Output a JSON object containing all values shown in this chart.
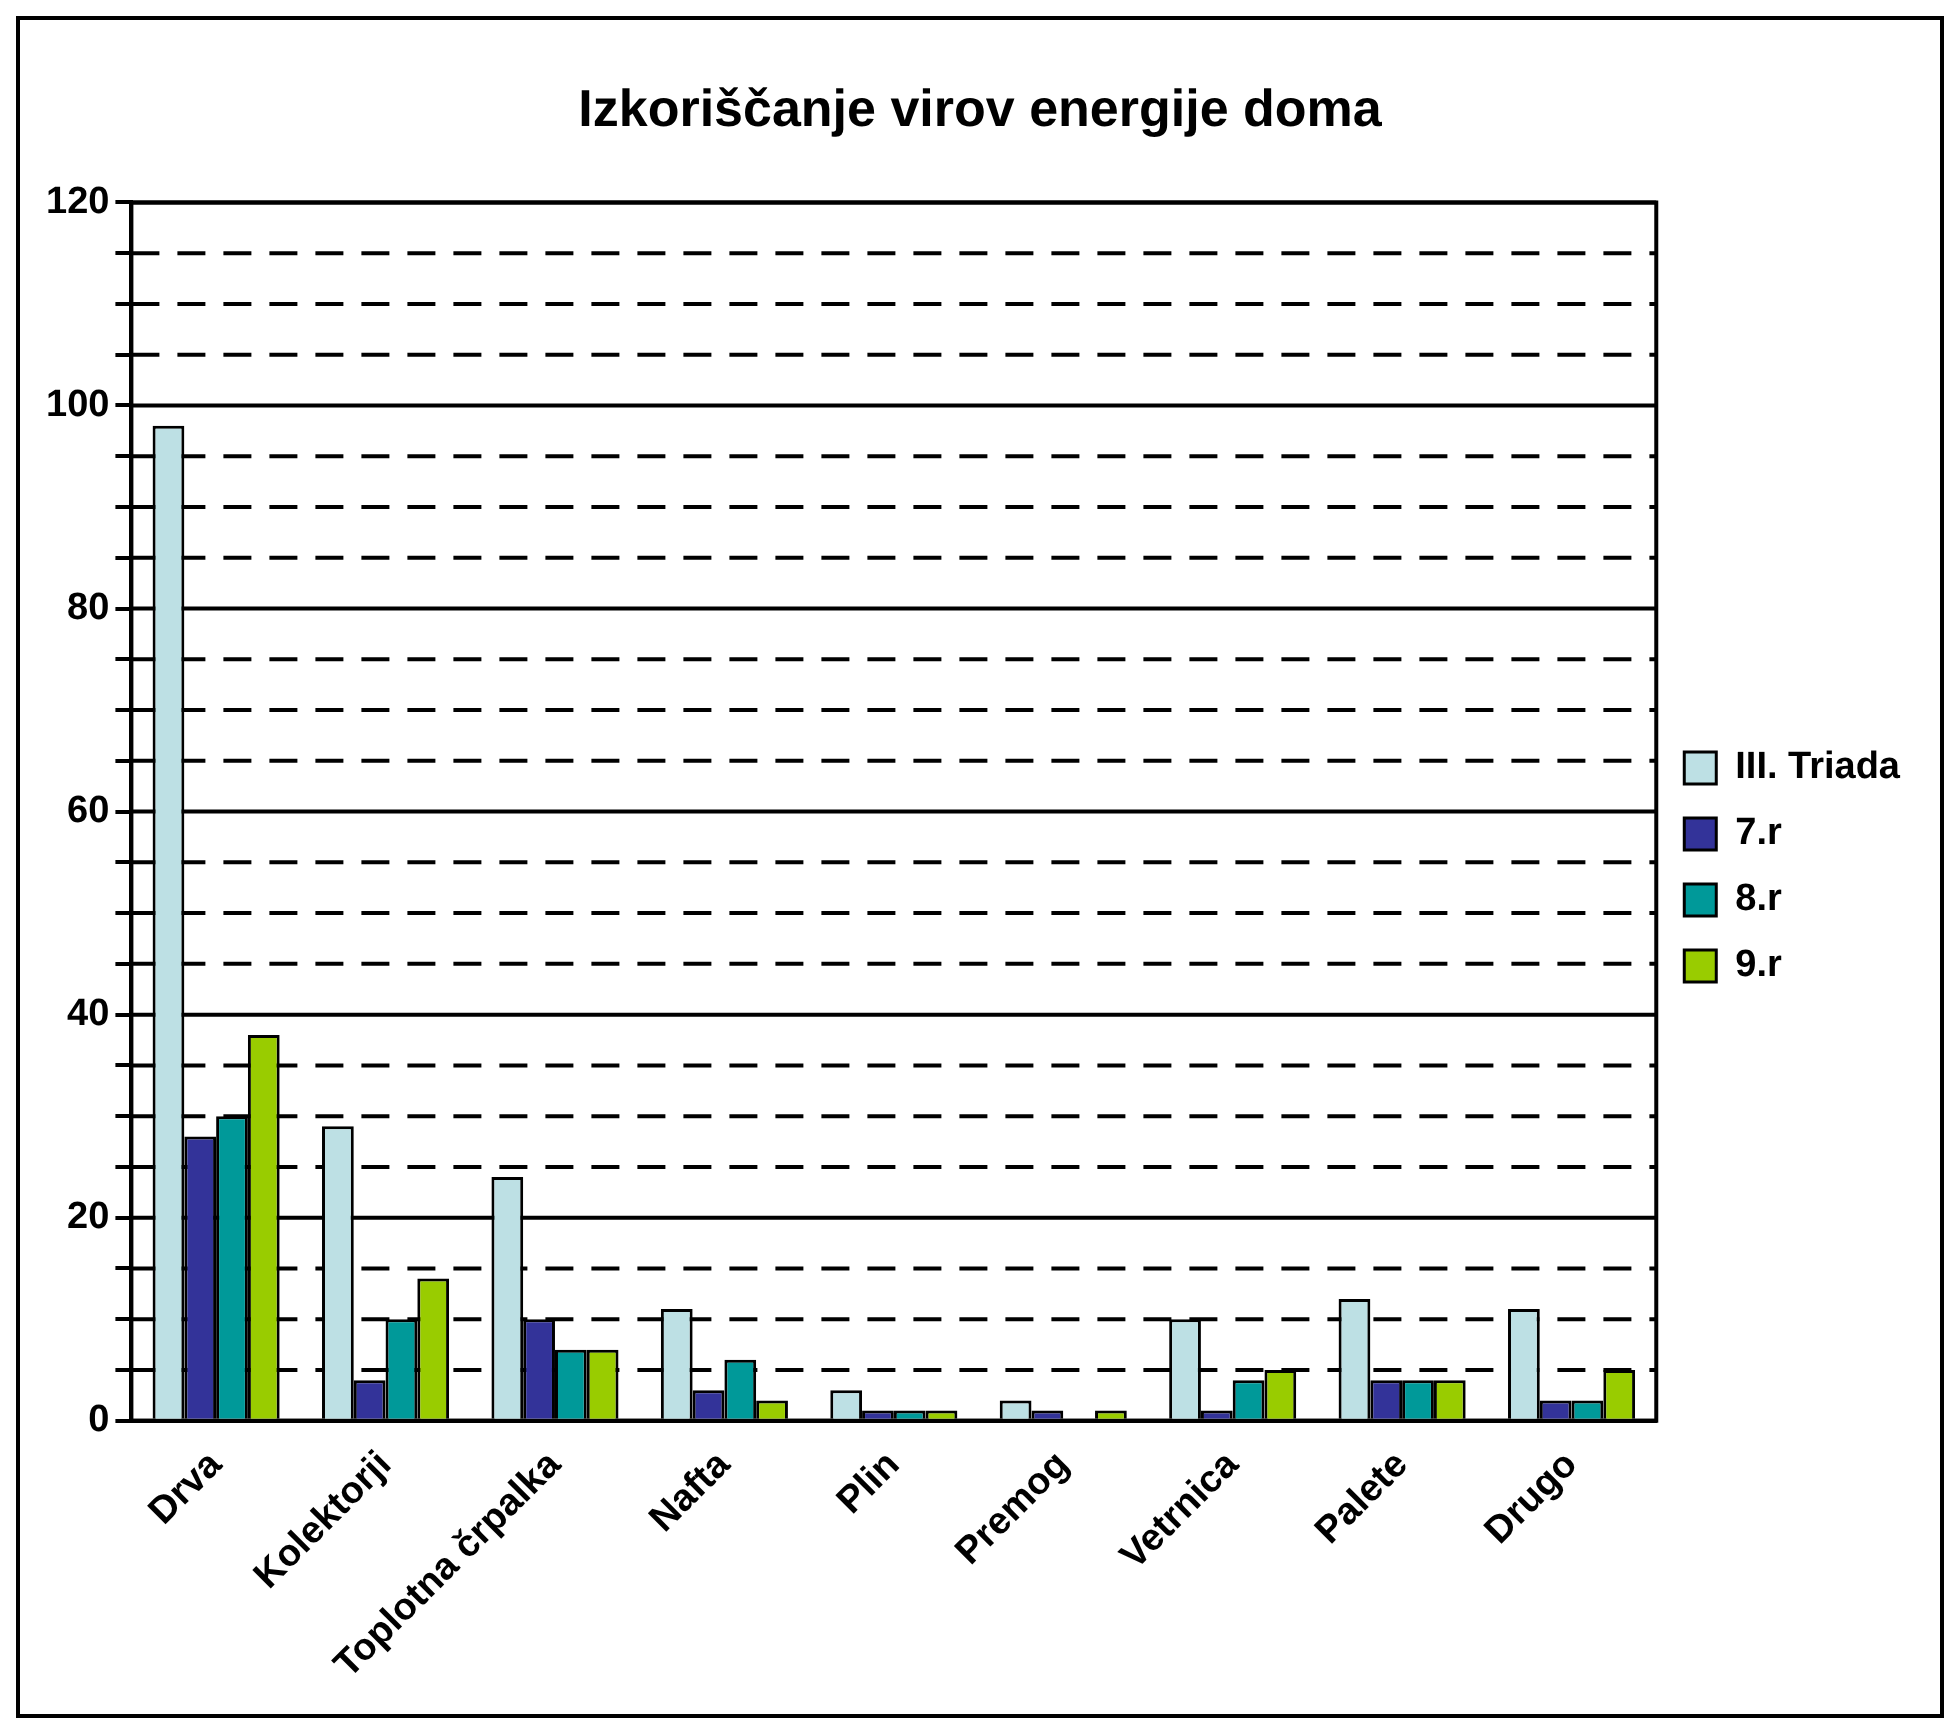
{
  "chart_data": {
    "type": "bar",
    "title": "Izkoriščanje virov energije doma",
    "categories": [
      "Drva",
      "Kolektorji",
      "Toplotna črpalka",
      "Nafta",
      "Plin",
      "Premog",
      "Vetrnica",
      "Palete",
      "Drugo"
    ],
    "series": [
      {
        "name": "III. Triada",
        "color": "#bde0e4",
        "values": [
          98,
          29,
          24,
          11,
          3,
          2,
          10,
          12,
          11
        ]
      },
      {
        "name": "7.r",
        "color": "#333399",
        "values": [
          28,
          4,
          10,
          3,
          1,
          1,
          1,
          4,
          2
        ]
      },
      {
        "name": "8.r",
        "color": "#009999",
        "values": [
          30,
          10,
          7,
          6,
          1,
          0,
          4,
          4,
          2
        ]
      },
      {
        "name": "9.r",
        "color": "#99cc00",
        "values": [
          38,
          14,
          7,
          2,
          1,
          1,
          5,
          4,
          5
        ]
      }
    ],
    "ylim": [
      0,
      120
    ],
    "yticks": [
      0,
      {
        "value": 5,
        "label": null
      },
      {
        "value": 10,
        "label": null
      },
      {
        "value": 15,
        "label": null
      },
      20,
      {
        "value": 25,
        "label": null
      },
      {
        "value": 30,
        "label": null
      },
      {
        "value": 35,
        "label": null
      },
      40,
      {
        "value": 45,
        "label": null
      },
      {
        "value": 50,
        "label": null
      },
      {
        "value": 55,
        "label": null
      },
      60,
      {
        "value": 65,
        "label": null
      },
      {
        "value": 70,
        "label": null
      },
      {
        "value": 75,
        "label": null
      },
      80,
      {
        "value": 85,
        "label": null
      },
      {
        "value": 90,
        "label": null
      },
      {
        "value": 95,
        "label": null
      },
      100,
      {
        "value": 105,
        "label": null
      },
      {
        "value": 110,
        "label": null
      },
      {
        "value": 115,
        "label": null
      },
      120
    ],
    "grid": "y",
    "legend": "right"
  }
}
